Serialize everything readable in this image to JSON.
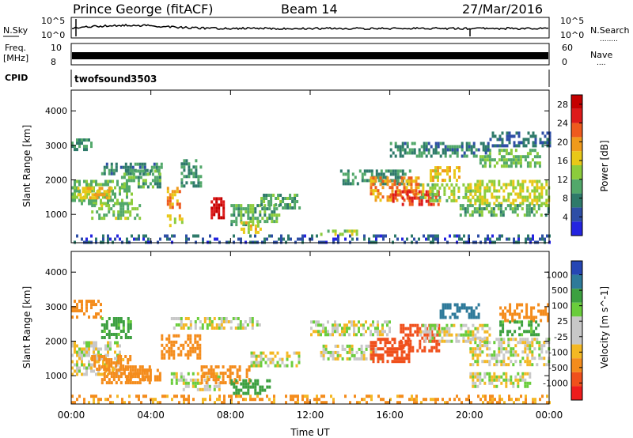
{
  "header": {
    "station": "Prince George (fitACF)",
    "beam": "Beam 14",
    "date": "27/Mar/2016"
  },
  "noise_panel": {
    "left_label": "N.Sky",
    "right_label": "N.Search",
    "right_legend": "........",
    "ytick_top": "10^5",
    "ytick_bottom": "10^0"
  },
  "freq_panel": {
    "left_label_1": "Freq.",
    "left_label_2": "[MHz]",
    "ytick_top": "10",
    "ytick_bottom": "8",
    "right_tick_top": "60",
    "right_tick_bottom": "0",
    "right_label": "Nave",
    "right_legend": "...."
  },
  "cpid_panel": {
    "left_label": "CPID",
    "program": "twofsound",
    "cpid": "3503"
  },
  "colors": {
    "power_scale": [
      "#2424e0",
      "#2e4ea6",
      "#2e7a6a",
      "#52a86a",
      "#8ccc3c",
      "#e8c818",
      "#f09a1c",
      "#ee5a1e",
      "#dd1a1a",
      "#c40000"
    ],
    "velocity_scale": [
      "#ee1c1c",
      "#f0501c",
      "#f48c1c",
      "#f4b824",
      "#c8c8c8",
      "#c8c8c8",
      "#6acd3c",
      "#3ca040",
      "#2e7a9a",
      "#2646b4"
    ]
  },
  "chart_data": [
    {
      "type": "heatmap",
      "title": "Power",
      "xlabel": "Time UT",
      "ylabel": "Slant Range [km]",
      "x_ticks": [
        "00:00",
        "04:00",
        "08:00",
        "12:00",
        "16:00",
        "20:00",
        "00:00"
      ],
      "xlim_hours": [
        0,
        24
      ],
      "ylim": [
        180,
        4600
      ],
      "y_ticks": [
        1000,
        2000,
        3000,
        4000
      ],
      "colorbar": {
        "label": "Power [dB]",
        "ticks": [
          4,
          8,
          12,
          16,
          20,
          24,
          28
        ],
        "range": [
          0,
          30
        ]
      },
      "regions": [
        {
          "t0": 0.0,
          "t1": 3.0,
          "r0": 1300,
          "r1": 2000,
          "v": 12
        },
        {
          "t0": 0.3,
          "t1": 2.0,
          "r0": 1500,
          "r1": 1800,
          "v": 18
        },
        {
          "t0": 1.0,
          "t1": 3.5,
          "r0": 900,
          "r1": 1300,
          "v": 13
        },
        {
          "t0": 0.0,
          "t1": 1.0,
          "r0": 2900,
          "r1": 3200,
          "v": 9
        },
        {
          "t0": 1.5,
          "t1": 4.5,
          "r0": 2200,
          "r1": 2500,
          "v": 8
        },
        {
          "t0": 2.5,
          "t1": 4.5,
          "r0": 1800,
          "r1": 2300,
          "v": 10
        },
        {
          "t0": 4.8,
          "t1": 5.4,
          "r0": 1200,
          "r1": 1800,
          "v": 20
        },
        {
          "t0": 4.8,
          "t1": 5.6,
          "r0": 700,
          "r1": 1000,
          "v": 16
        },
        {
          "t0": 5.5,
          "t1": 6.5,
          "r0": 1800,
          "r1": 2600,
          "v": 9
        },
        {
          "t0": 7.0,
          "t1": 7.7,
          "r0": 900,
          "r1": 1500,
          "v": 28
        },
        {
          "t0": 8.0,
          "t1": 10.5,
          "r0": 700,
          "r1": 1300,
          "v": 11
        },
        {
          "t0": 8.5,
          "t1": 9.5,
          "r0": 500,
          "r1": 800,
          "v": 16
        },
        {
          "t0": 9.5,
          "t1": 11.5,
          "r0": 1200,
          "r1": 1600,
          "v": 10
        },
        {
          "t0": 0.0,
          "t1": 24.0,
          "r0": 200,
          "r1": 420,
          "v": 5
        },
        {
          "t0": 12.5,
          "t1": 14.5,
          "r0": 400,
          "r1": 560,
          "v": 14
        },
        {
          "t0": 13.5,
          "t1": 17.0,
          "r0": 1900,
          "r1": 2300,
          "v": 9
        },
        {
          "t0": 15.0,
          "t1": 17.5,
          "r0": 1400,
          "r1": 2100,
          "v": 20
        },
        {
          "t0": 16.0,
          "t1": 18.5,
          "r0": 1300,
          "r1": 1700,
          "v": 24
        },
        {
          "t0": 17.5,
          "t1": 20.5,
          "r0": 1400,
          "r1": 1900,
          "v": 14
        },
        {
          "t0": 18.0,
          "t1": 19.5,
          "r0": 2000,
          "r1": 2400,
          "v": 17
        },
        {
          "t0": 20.0,
          "t1": 24.0,
          "r0": 1300,
          "r1": 2000,
          "v": 15
        },
        {
          "t0": 20.5,
          "t1": 23.5,
          "r0": 2400,
          "r1": 2900,
          "v": 12
        },
        {
          "t0": 19.5,
          "t1": 24.0,
          "r0": 1000,
          "r1": 1300,
          "v": 11
        },
        {
          "t0": 16.0,
          "t1": 21.0,
          "r0": 2700,
          "r1": 3100,
          "v": 8
        },
        {
          "t0": 21.0,
          "t1": 24.0,
          "r0": 3000,
          "r1": 3400,
          "v": 6
        }
      ]
    },
    {
      "type": "heatmap",
      "title": "Velocity",
      "xlabel": "Time UT",
      "ylabel": "Slant Range [km]",
      "x_ticks": [
        "00:00",
        "04:00",
        "08:00",
        "12:00",
        "16:00",
        "20:00",
        "00:00"
      ],
      "xlim_hours": [
        0,
        24
      ],
      "ylim": [
        180,
        4600
      ],
      "y_ticks": [
        1000,
        2000,
        3000,
        4000
      ],
      "colorbar": {
        "label": "Velocity [m s^-1]",
        "ticks": [
          "1000",
          "500",
          "100",
          "25",
          "-25",
          "-100",
          "-500",
          "-1000"
        ]
      },
      "regions": [
        {
          "t0": 0.0,
          "t1": 2.5,
          "r0": 1000,
          "r1": 2000,
          "v": 0
        },
        {
          "t0": 1.0,
          "t1": 3.0,
          "r0": 1200,
          "r1": 1600,
          "v": -150
        },
        {
          "t0": 1.5,
          "t1": 4.0,
          "r0": 800,
          "r1": 1300,
          "v": -300
        },
        {
          "t0": 2.5,
          "t1": 4.5,
          "r0": 900,
          "r1": 1200,
          "v": -200
        },
        {
          "t0": 0.0,
          "t1": 1.5,
          "r0": 2700,
          "r1": 3200,
          "v": -200
        },
        {
          "t0": 1.5,
          "t1": 3.0,
          "r0": 2100,
          "r1": 2700,
          "v": 150
        },
        {
          "t0": 4.5,
          "t1": 6.5,
          "r0": 1500,
          "r1": 2200,
          "v": -200
        },
        {
          "t0": 5.0,
          "t1": 9.5,
          "r0": 2400,
          "r1": 2700,
          "v": 0
        },
        {
          "t0": 5.0,
          "t1": 7.5,
          "r0": 600,
          "r1": 1100,
          "v": 0
        },
        {
          "t0": 6.5,
          "t1": 9.0,
          "r0": 800,
          "r1": 1300,
          "v": -300
        },
        {
          "t0": 8.0,
          "t1": 10.0,
          "r0": 500,
          "r1": 900,
          "v": 200
        },
        {
          "t0": 9.0,
          "t1": 11.5,
          "r0": 1300,
          "r1": 1700,
          "v": 0
        },
        {
          "t0": 0.0,
          "t1": 24.0,
          "r0": 200,
          "r1": 450,
          "v": -120
        },
        {
          "t0": 12.0,
          "t1": 16.0,
          "r0": 2200,
          "r1": 2600,
          "v": 0
        },
        {
          "t0": 12.5,
          "t1": 15.5,
          "r0": 1500,
          "r1": 1900,
          "v": 0
        },
        {
          "t0": 15.0,
          "t1": 17.0,
          "r0": 1400,
          "r1": 2100,
          "v": -600
        },
        {
          "t0": 16.5,
          "t1": 18.5,
          "r0": 1700,
          "r1": 2500,
          "v": -700
        },
        {
          "t0": 18.5,
          "t1": 20.5,
          "r0": 2700,
          "r1": 3100,
          "v": 700
        },
        {
          "t0": 17.5,
          "t1": 21.0,
          "r0": 2000,
          "r1": 2500,
          "v": 0
        },
        {
          "t0": 20.0,
          "t1": 24.0,
          "r0": 1300,
          "r1": 2100,
          "v": 0
        },
        {
          "t0": 21.5,
          "t1": 24.0,
          "r0": 2600,
          "r1": 3100,
          "v": -200
        },
        {
          "t0": 21.5,
          "t1": 23.5,
          "r0": 2200,
          "r1": 2600,
          "v": 150
        },
        {
          "t0": 20.0,
          "t1": 23.0,
          "r0": 700,
          "r1": 1100,
          "v": 0
        }
      ]
    }
  ]
}
